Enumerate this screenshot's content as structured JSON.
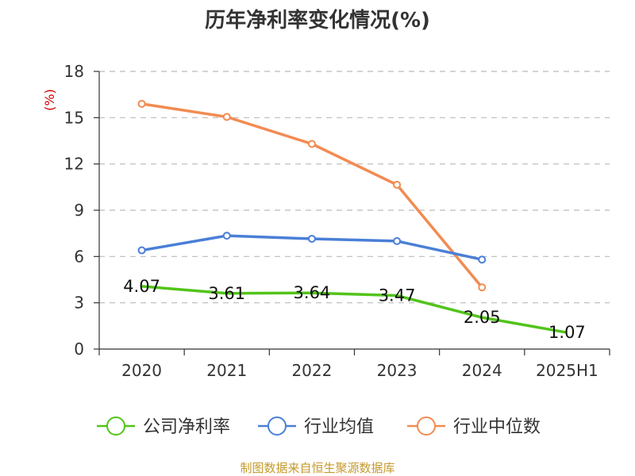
{
  "colors": {
    "company": "#52c41a",
    "industry_avg": "#4a7fd6",
    "industry_median": "#f28b52",
    "unit": "#cc0000",
    "source": "#c49a2c",
    "grid": "#bbbbbb",
    "axis": "#333333"
  },
  "chart_data": {
    "type": "line",
    "title": "历年净利率变化情况(%)",
    "unit_label": "(%)",
    "categories": [
      "2020",
      "2021",
      "2022",
      "2023",
      "2024",
      "2025H1"
    ],
    "ylim": [
      0,
      18
    ],
    "yticks": [
      0,
      3,
      6,
      9,
      12,
      15,
      18
    ],
    "grid": true,
    "legend_position": "bottom",
    "series": [
      {
        "name": "公司净利率",
        "values": [
          4.07,
          3.61,
          3.64,
          3.47,
          2.05,
          1.07
        ],
        "labels": [
          "4.07",
          "3.61",
          "3.64",
          "3.47",
          "2.05",
          "1.07"
        ]
      },
      {
        "name": "行业均值",
        "values": [
          6.4,
          7.35,
          7.15,
          7.0,
          5.8,
          null
        ]
      },
      {
        "name": "行业中位数",
        "values": [
          15.9,
          15.05,
          13.3,
          10.65,
          4.0,
          null
        ]
      }
    ]
  },
  "source": "制图数据来自恒生聚源数据库"
}
